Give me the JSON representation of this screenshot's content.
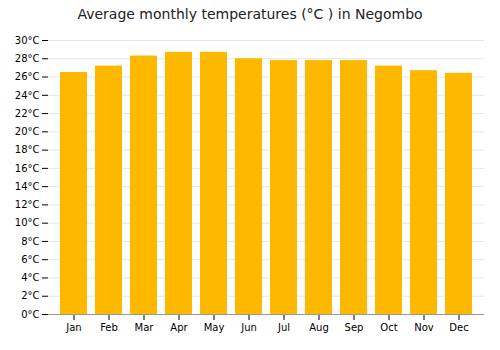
{
  "chart_data": {
    "type": "bar",
    "title": "Average monthly temperatures (°C ) in Negombo",
    "categories": [
      "Jan",
      "Feb",
      "Mar",
      "Apr",
      "May",
      "Jun",
      "Jul",
      "Aug",
      "Sep",
      "Oct",
      "Nov",
      "Dec"
    ],
    "values": [
      26.5,
      27.2,
      28.3,
      28.7,
      28.7,
      28.0,
      27.8,
      27.8,
      27.8,
      27.2,
      26.7,
      26.4
    ],
    "color": "#FFB800",
    "ylim": [
      0,
      30
    ],
    "yticks": [
      {
        "value": 0,
        "label": "0°C"
      },
      {
        "value": 2,
        "label": "2°C"
      },
      {
        "value": 4,
        "label": "4°C"
      },
      {
        "value": 6,
        "label": "6°C"
      },
      {
        "value": 8,
        "label": "8°C"
      },
      {
        "value": 10,
        "label": "10°C"
      },
      {
        "value": 12,
        "label": "12°C"
      },
      {
        "value": 14,
        "label": "14°C"
      },
      {
        "value": 16,
        "label": "16°C"
      },
      {
        "value": 18,
        "label": "18°C"
      },
      {
        "value": 20,
        "label": "20°C"
      },
      {
        "value": 22,
        "label": "22°C"
      },
      {
        "value": 24,
        "label": "24°C"
      },
      {
        "value": 26,
        "label": "26°C"
      },
      {
        "value": 28,
        "label": "28°C"
      },
      {
        "value": 30,
        "label": "30°C"
      }
    ],
    "grid": true
  }
}
